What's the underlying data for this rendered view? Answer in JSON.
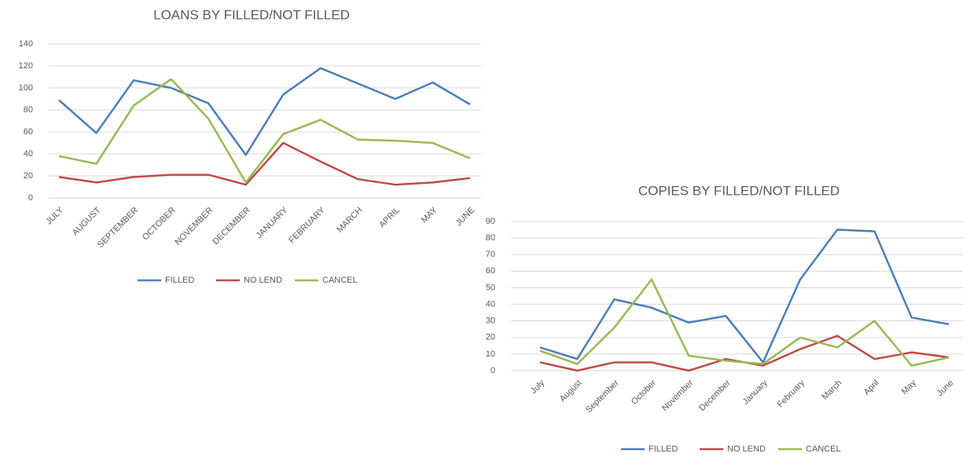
{
  "chart_data": [
    {
      "type": "line",
      "title": "LOANS BY FILLED/NOT FILLED",
      "categories": [
        "JULY",
        "AUGUST",
        "SEPTEMBER",
        "OCTOBER",
        "NOVEMBER",
        "DECEMBER",
        "JANUARY",
        "FEBRUARY",
        "MARCH",
        "APRIL",
        "MAY",
        "JUNE"
      ],
      "series": [
        {
          "name": "FILLED",
          "color": "#4a7ebb",
          "values": [
            89,
            59,
            107,
            100,
            86,
            39,
            94,
            118,
            104,
            90,
            105,
            85
          ]
        },
        {
          "name": "NO LEND",
          "color": "#be4b48",
          "values": [
            19,
            14,
            19,
            21,
            21,
            12,
            50,
            33,
            17,
            12,
            14,
            18
          ]
        },
        {
          "name": "CANCEL",
          "color": "#98b954",
          "values": [
            38,
            31,
            84,
            108,
            72,
            14,
            58,
            71,
            53,
            52,
            50,
            36
          ]
        }
      ],
      "ylim": [
        0,
        140
      ],
      "yticks": [
        0,
        20,
        40,
        60,
        80,
        100,
        120,
        140
      ],
      "grid": true,
      "legend": "bottom"
    },
    {
      "type": "line",
      "title": "COPIES BY FILLED/NOT FILLED",
      "categories": [
        "July",
        "August",
        "September",
        "October",
        "November",
        "December",
        "January",
        "February",
        "March",
        "April",
        "May",
        "June"
      ],
      "series": [
        {
          "name": "FILLED",
          "color": "#4a7ebb",
          "values": [
            14,
            7,
            43,
            38,
            29,
            33,
            5,
            55,
            85,
            84,
            32,
            28
          ]
        },
        {
          "name": "NO LEND",
          "color": "#be4b48",
          "values": [
            5,
            0,
            5,
            5,
            0,
            7,
            3,
            13,
            21,
            7,
            11,
            8
          ]
        },
        {
          "name": "CANCEL",
          "color": "#98b954",
          "values": [
            12,
            4,
            26,
            55,
            9,
            6,
            4,
            20,
            14,
            30,
            3,
            8
          ]
        }
      ],
      "ylim": [
        0,
        90
      ],
      "yticks": [
        0,
        10,
        20,
        30,
        40,
        50,
        60,
        70,
        80,
        90
      ],
      "grid": true,
      "legend": "bottom"
    }
  ]
}
